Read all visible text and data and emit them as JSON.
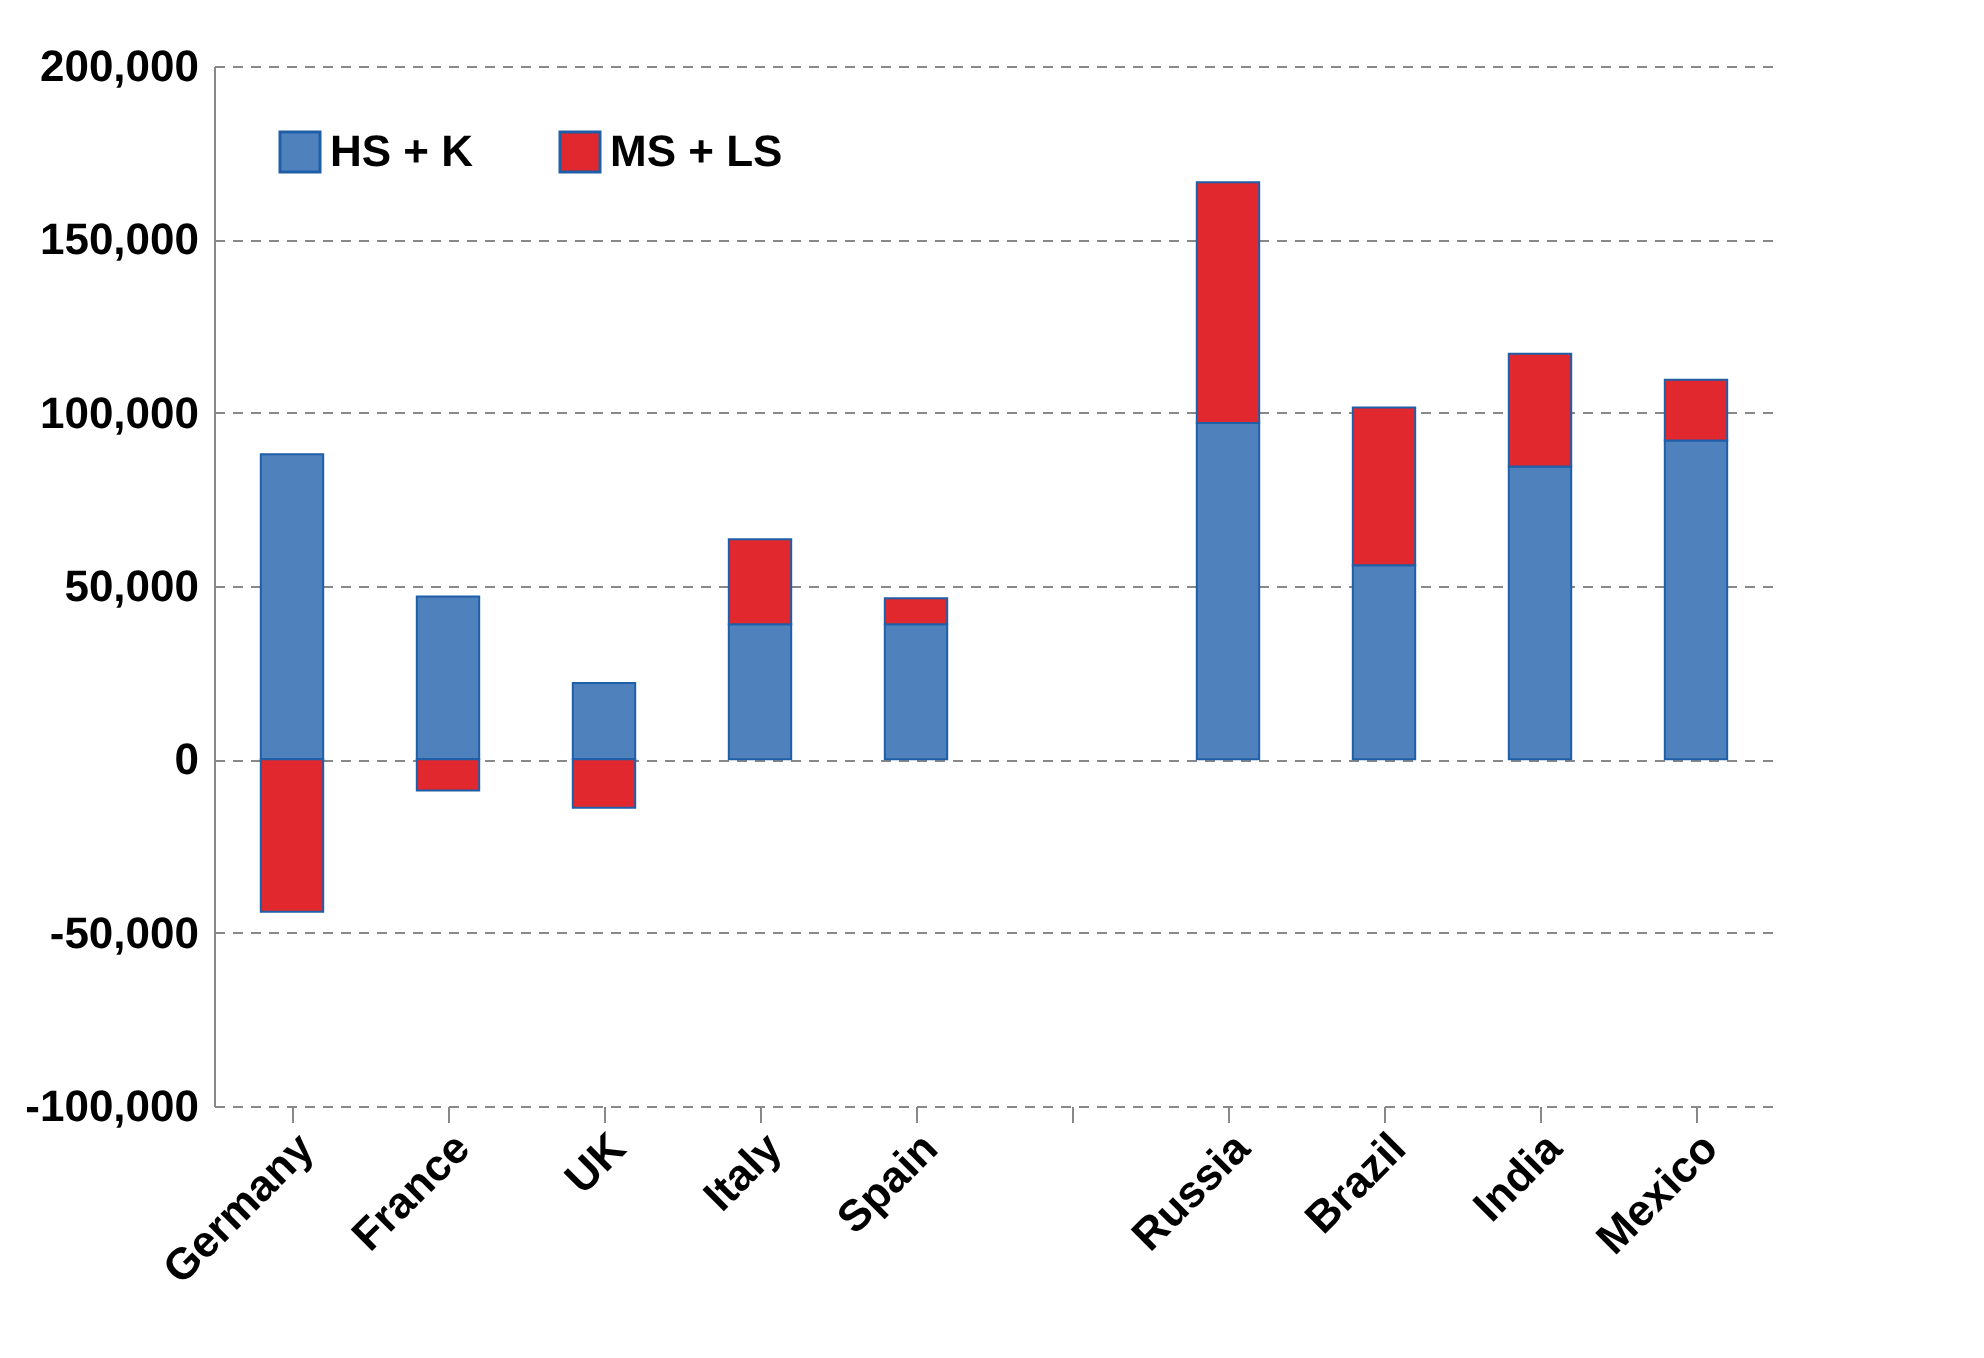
{
  "chart_data": {
    "type": "bar",
    "stacked": true,
    "categories": [
      "Germany",
      "France",
      "UK",
      "Italy",
      "Spain",
      null,
      "Russia",
      "Brazil",
      "India",
      "Mexico"
    ],
    "series": [
      {
        "name": "HS + K",
        "color": "#4f81bd",
        "values": [
          88000,
          47000,
          22000,
          39000,
          39000,
          null,
          97000,
          56000,
          84500,
          92000
        ]
      },
      {
        "name": "MS + LS",
        "color": "#e0282e",
        "values": [
          -44000,
          -9000,
          -14000,
          24500,
          7500,
          null,
          69500,
          45500,
          32500,
          17500
        ]
      }
    ],
    "ylim": [
      -100000,
      200000
    ],
    "yticks": [
      {
        "value": -100000,
        "label": "-100,000"
      },
      {
        "value": -50000,
        "label": "-50,000"
      },
      {
        "value": 0,
        "label": "0"
      },
      {
        "value": 50000,
        "label": "50,000"
      },
      {
        "value": 100000,
        "label": "100,000"
      },
      {
        "value": 150000,
        "label": "150,000"
      },
      {
        "value": 200000,
        "label": "200,000"
      }
    ],
    "grid": "y",
    "legend": "top left"
  }
}
